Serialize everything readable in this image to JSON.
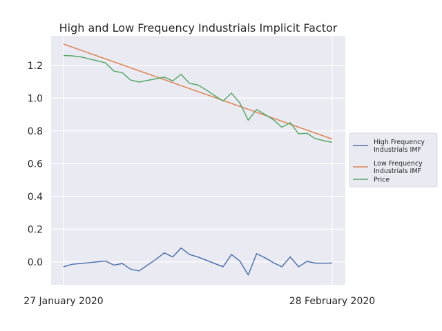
{
  "chart_data": {
    "type": "line",
    "title": "High and Low Frequency Industrials Implicit Factor",
    "xlabel": "",
    "ylabel": "",
    "x_start": 0,
    "x_end": 32,
    "x_tick_labels": [
      {
        "x": 0,
        "label": "27 January 2020"
      },
      {
        "x": 32,
        "label": "28 February 2020"
      }
    ],
    "ylim": [
      -0.14,
      1.38
    ],
    "y_ticks": [
      0.0,
      0.2,
      0.4,
      0.6,
      0.8,
      1.0,
      1.2
    ],
    "y_tick_labels": [
      "0.0",
      "0.2",
      "0.4",
      "0.6",
      "0.8",
      "1.0",
      "1.2"
    ],
    "grid": true,
    "legend_position": "right",
    "series": [
      {
        "name": "High Frequency Industrials IMF",
        "color": "#4c72b0",
        "x": [
          0,
          1,
          2,
          3,
          4,
          5,
          6,
          7,
          8,
          9,
          10,
          11,
          12,
          13,
          14,
          15,
          16,
          17,
          18,
          19,
          20,
          21,
          22,
          23,
          24,
          25,
          26,
          27,
          28,
          29,
          30,
          31,
          32
        ],
        "values": [
          -0.03,
          -0.015,
          -0.01,
          -0.005,
          0.0,
          0.005,
          -0.02,
          -0.01,
          -0.045,
          -0.055,
          -0.02,
          0.015,
          0.055,
          0.03,
          0.085,
          0.045,
          0.03,
          0.01,
          -0.01,
          -0.03,
          0.045,
          0.005,
          -0.08,
          0.05,
          0.025,
          -0.005,
          -0.03,
          0.03,
          -0.03,
          0.003,
          -0.008,
          -0.008,
          -0.007
        ]
      },
      {
        "name": "Low Frequency Industrials IMF",
        "color": "#dd8452",
        "x": [
          0,
          32
        ],
        "values": [
          1.33,
          0.75
        ]
      },
      {
        "name": "Price",
        "color": "#55a868",
        "x": [
          0,
          1,
          2,
          3,
          4,
          5,
          6,
          7,
          8,
          9,
          10,
          11,
          12,
          13,
          14,
          15,
          16,
          17,
          18,
          19,
          20,
          21,
          22,
          23,
          24,
          25,
          26,
          27,
          28,
          29,
          30,
          31,
          32
        ],
        "values": [
          1.26,
          1.258,
          1.252,
          1.24,
          1.228,
          1.215,
          1.165,
          1.155,
          1.11,
          1.098,
          1.108,
          1.118,
          1.128,
          1.105,
          1.145,
          1.09,
          1.08,
          1.05,
          1.015,
          0.982,
          1.03,
          0.97,
          0.865,
          0.93,
          0.9,
          0.868,
          0.822,
          0.85,
          0.782,
          0.785,
          0.752,
          0.74,
          0.73
        ]
      }
    ]
  }
}
